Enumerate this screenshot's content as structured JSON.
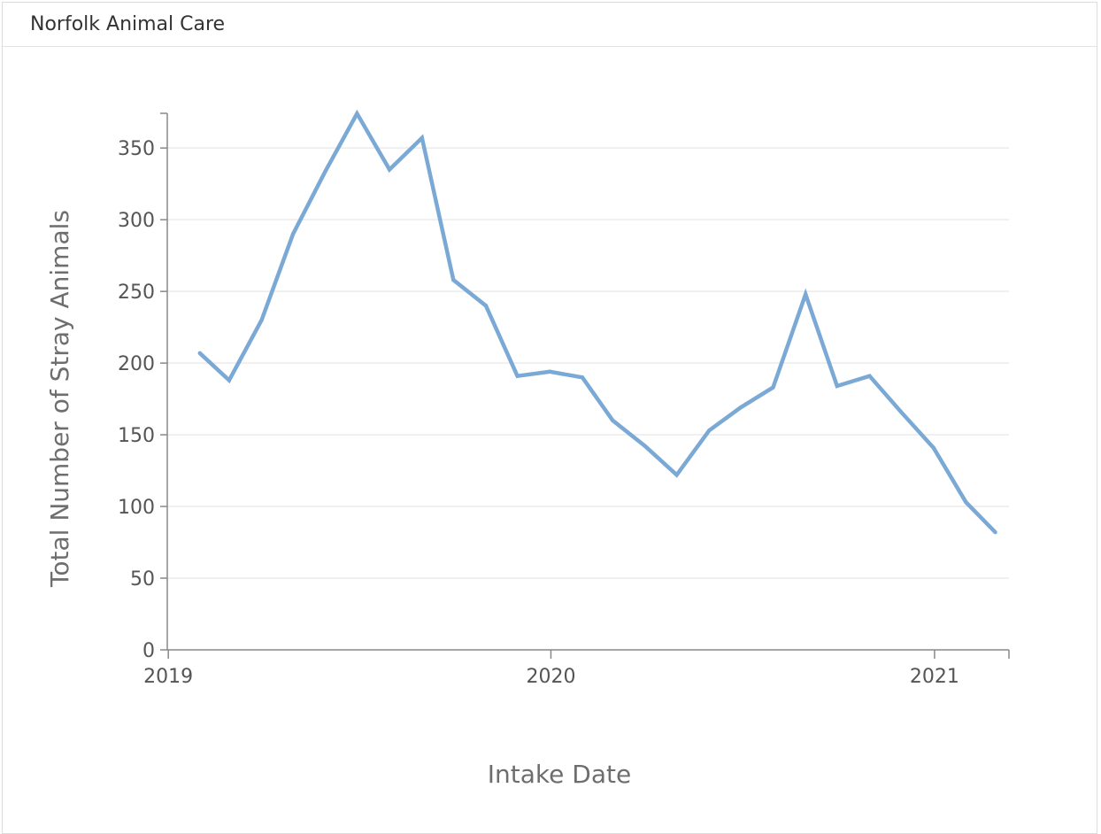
{
  "panel": {
    "title": "Norfolk Animal Care"
  },
  "colors": {
    "line": "#7ba9d5",
    "grid": "#ebebeb",
    "axis": "#888888",
    "text": "#555555"
  },
  "chart_data": {
    "type": "line",
    "xlabel": "Intake Date",
    "ylabel": "Total Number of Stray Animals",
    "ylim": [
      0,
      375
    ],
    "yticks": [
      0,
      50,
      100,
      150,
      200,
      250,
      300,
      350
    ],
    "xlim": [
      "2018-12-31",
      "2021-03-13"
    ],
    "xticks": [
      {
        "date": "2019-01-01",
        "label": "2019"
      },
      {
        "date": "2020-01-01",
        "label": "2020"
      },
      {
        "date": "2021-01-01",
        "label": "2021"
      }
    ],
    "grid": true,
    "legend": "none",
    "series": [
      {
        "points": [
          {
            "x": "2019-01-31",
            "y": 207
          },
          {
            "x": "2019-02-28",
            "y": 188
          },
          {
            "x": "2019-03-31",
            "y": 230
          },
          {
            "x": "2019-04-30",
            "y": 290
          },
          {
            "x": "2019-05-31",
            "y": 334
          },
          {
            "x": "2019-06-30",
            "y": 374
          },
          {
            "x": "2019-07-31",
            "y": 335
          },
          {
            "x": "2019-08-31",
            "y": 357
          },
          {
            "x": "2019-09-30",
            "y": 258
          },
          {
            "x": "2019-10-31",
            "y": 240
          },
          {
            "x": "2019-11-30",
            "y": 191
          },
          {
            "x": "2019-12-31",
            "y": 194
          },
          {
            "x": "2020-01-31",
            "y": 190
          },
          {
            "x": "2020-02-29",
            "y": 160
          },
          {
            "x": "2020-03-31",
            "y": 142
          },
          {
            "x": "2020-04-30",
            "y": 122
          },
          {
            "x": "2020-05-31",
            "y": 153
          },
          {
            "x": "2020-06-30",
            "y": 169
          },
          {
            "x": "2020-07-31",
            "y": 183
          },
          {
            "x": "2020-08-31",
            "y": 248
          },
          {
            "x": "2020-09-30",
            "y": 184
          },
          {
            "x": "2020-10-31",
            "y": 191
          },
          {
            "x": "2020-11-30",
            "y": 166
          },
          {
            "x": "2020-12-31",
            "y": 141
          },
          {
            "x": "2021-01-31",
            "y": 103
          },
          {
            "x": "2021-02-28",
            "y": 82
          }
        ]
      }
    ]
  }
}
